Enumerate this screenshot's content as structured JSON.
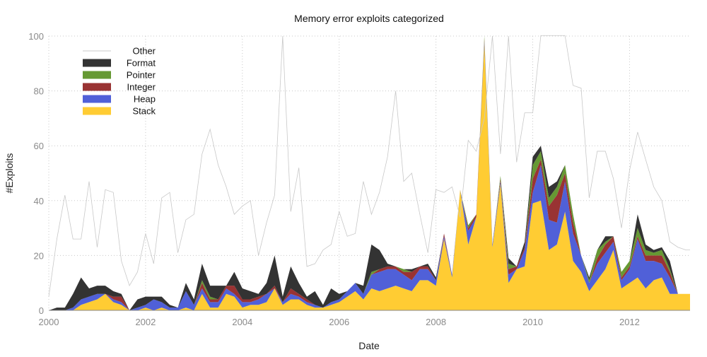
{
  "chart_data": {
    "type": "area",
    "title": "Memory error exploits categorized",
    "xlabel": "Date",
    "ylabel": "#Exploits",
    "xlim": [
      2000.0,
      2013.25
    ],
    "ylim": [
      0,
      100
    ],
    "grid": true,
    "legend_position": "top-left",
    "x_ticks": [
      "2000",
      "2002",
      "2004",
      "2006",
      "2008",
      "2010",
      "2012"
    ],
    "y_ticks": [
      "0",
      "20",
      "40",
      "60",
      "80",
      "100"
    ],
    "x": [
      2000.0,
      2000.167,
      2000.333,
      2000.5,
      2000.667,
      2000.833,
      2001.0,
      2001.167,
      2001.333,
      2001.5,
      2001.667,
      2001.833,
      2002.0,
      2002.167,
      2002.333,
      2002.5,
      2002.667,
      2002.833,
      2003.0,
      2003.167,
      2003.333,
      2003.5,
      2003.667,
      2003.833,
      2004.0,
      2004.167,
      2004.333,
      2004.5,
      2004.667,
      2004.833,
      2005.0,
      2005.167,
      2005.333,
      2005.5,
      2005.667,
      2005.833,
      2006.0,
      2006.167,
      2006.333,
      2006.5,
      2006.667,
      2006.833,
      2007.0,
      2007.167,
      2007.333,
      2007.5,
      2007.667,
      2007.833,
      2008.0,
      2008.167,
      2008.333,
      2008.5,
      2008.667,
      2008.833,
      2009.0,
      2009.167,
      2009.333,
      2009.5,
      2009.667,
      2009.833,
      2010.0,
      2010.167,
      2010.333,
      2010.5,
      2010.667,
      2010.833,
      2011.0,
      2011.167,
      2011.333,
      2011.5,
      2011.667,
      2011.833,
      2012.0,
      2012.167,
      2012.333,
      2012.5,
      2012.667,
      2012.833,
      2013.0,
      2013.167,
      2013.25
    ],
    "series": [
      {
        "name": "Stack",
        "color": "#ffcc33",
        "values": [
          0,
          0,
          0,
          0,
          2,
          3,
          4,
          6,
          3,
          2,
          0,
          0,
          1,
          0,
          1,
          0,
          0,
          1,
          0,
          6,
          1,
          1,
          6,
          5,
          1,
          2,
          2,
          3,
          8,
          2,
          4,
          4,
          2,
          1,
          1,
          2,
          3,
          5,
          7,
          4,
          8,
          7,
          8,
          9,
          8,
          7,
          11,
          11,
          9,
          26,
          12,
          44,
          24,
          34,
          97,
          23,
          46,
          10,
          15,
          16,
          39,
          40,
          22,
          24,
          36,
          18,
          14,
          7,
          11,
          15,
          22,
          8,
          10,
          12,
          8,
          11,
          12,
          6,
          6,
          6,
          6
        ]
      },
      {
        "name": "Heap",
        "color": "#5060d8",
        "values": [
          0,
          0,
          0,
          1,
          2,
          2,
          2,
          0,
          1,
          1,
          0,
          1,
          1,
          4,
          2,
          1,
          1,
          6,
          2,
          2,
          2,
          2,
          2,
          1,
          2,
          1,
          2,
          3,
          0,
          1,
          2,
          1,
          1,
          1,
          0,
          1,
          1,
          2,
          3,
          2,
          5,
          7,
          7,
          6,
          5,
          4,
          4,
          4,
          2,
          1,
          1,
          0,
          5,
          0,
          1,
          1,
          1,
          3,
          0,
          6,
          4,
          13,
          11,
          8,
          11,
          10,
          6,
          3,
          6,
          6,
          3,
          3,
          5,
          14,
          10,
          7,
          5,
          6,
          0,
          0,
          0
        ]
      },
      {
        "name": "Integer",
        "color": "#993333",
        "values": [
          0,
          0,
          0,
          0,
          0,
          0,
          0,
          0,
          1,
          2,
          0,
          0,
          0,
          0,
          0,
          0,
          0,
          0,
          0,
          2,
          1,
          1,
          1,
          3,
          1,
          1,
          1,
          0,
          1,
          0,
          2,
          1,
          1,
          0,
          0,
          0,
          0,
          0,
          0,
          0,
          0,
          1,
          1,
          1,
          1,
          3,
          1,
          1,
          0,
          1,
          0,
          0,
          1,
          1,
          1,
          0,
          1,
          2,
          1,
          1,
          5,
          2,
          5,
          10,
          3,
          4,
          0,
          0,
          2,
          3,
          2,
          1,
          1,
          1,
          2,
          2,
          3,
          2,
          0,
          0,
          0
        ]
      },
      {
        "name": "Pointer",
        "color": "#669933",
        "values": [
          0,
          0,
          0,
          0,
          0,
          0,
          0,
          0,
          0,
          0,
          0,
          0,
          0,
          0,
          0,
          0,
          0,
          0,
          0,
          1,
          1,
          0,
          0,
          0,
          0,
          0,
          0,
          0,
          0,
          0,
          0,
          0,
          0,
          0,
          0,
          0,
          0,
          0,
          0,
          0,
          1,
          0,
          0,
          0,
          1,
          0,
          0,
          0,
          0,
          0,
          0,
          0,
          1,
          0,
          1,
          0,
          1,
          2,
          0,
          0,
          5,
          3,
          3,
          3,
          3,
          3,
          0,
          1,
          3,
          1,
          0,
          2,
          2,
          3,
          2,
          1,
          2,
          1,
          0,
          0,
          0
        ]
      },
      {
        "name": "Format",
        "color": "#333333",
        "values": [
          0,
          1,
          1,
          5,
          8,
          3,
          3,
          3,
          2,
          1,
          0,
          3,
          3,
          1,
          2,
          1,
          0,
          3,
          2,
          6,
          4,
          5,
          0,
          5,
          4,
          3,
          1,
          4,
          11,
          2,
          8,
          4,
          1,
          5,
          1,
          5,
          2,
          0,
          0,
          3,
          10,
          7,
          1,
          0,
          0,
          1,
          0,
          1,
          1,
          0,
          0,
          0,
          0,
          0,
          2,
          0,
          0,
          2,
          0,
          2,
          3,
          2,
          4,
          2,
          0,
          0,
          0,
          1,
          0,
          2,
          0,
          0,
          0,
          5,
          2,
          1,
          1,
          3,
          0,
          0,
          0
        ]
      },
      {
        "name": "Other",
        "color": "#c8c8c8",
        "values": [
          5,
          26,
          42,
          26,
          26,
          47,
          23,
          44,
          43,
          18,
          9,
          14,
          28,
          17,
          41,
          43,
          21,
          33,
          35,
          57,
          66,
          53,
          45,
          35,
          38,
          40,
          20,
          32,
          42,
          100,
          36,
          52,
          16,
          17,
          22,
          24,
          36,
          27,
          28,
          47,
          35,
          43,
          56,
          80,
          47,
          50,
          35,
          21,
          44,
          43,
          45,
          34,
          62,
          58,
          70,
          100,
          57,
          100,
          54,
          72,
          72,
          102,
          102,
          102,
          102,
          82,
          81,
          41,
          58,
          58,
          48,
          30,
          51,
          65,
          55,
          45,
          40,
          25,
          23,
          22,
          22
        ]
      }
    ]
  }
}
